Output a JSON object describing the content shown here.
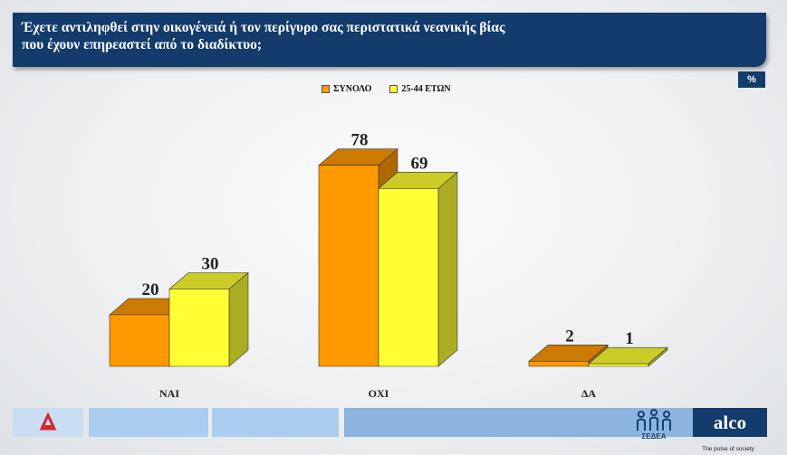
{
  "header": {
    "title": "Έχετε αντιληφθεί στην οικογένειά ή τον περίγυρο σας περιστατικά νεανικής βίας\nπου έχουν επηρεαστεί από το διαδίκτυο;"
  },
  "unit_badge": "%",
  "legend": [
    {
      "label": "ΣΥΝΟΛΟ",
      "color": "#ff9900"
    },
    {
      "label": "25-44 ΕΤΩΝ",
      "color": "#ffff33"
    }
  ],
  "chart_data": {
    "type": "bar",
    "style": "3d-clustered",
    "categories": [
      "ΝΑΙ",
      "ΟΧΙ",
      "ΔΑ"
    ],
    "series": [
      {
        "name": "ΣΥΝΟΛΟ",
        "values": [
          20,
          78,
          2
        ],
        "color": "#ff9900"
      },
      {
        "name": "25-44 ΕΤΩΝ",
        "values": [
          30,
          69,
          1
        ],
        "color": "#ffff33"
      }
    ],
    "ylim": [
      0,
      100
    ],
    "grid": false,
    "legend_position": "top-center",
    "data_labels": true
  },
  "footer": {
    "brand": "alco",
    "tagline": "The pulse of society",
    "partner": "ΣΕΔΕΑ",
    "colors": [
      "#c9def3",
      "#a9ccef",
      "#a9ccef",
      "#8cb4de"
    ]
  }
}
